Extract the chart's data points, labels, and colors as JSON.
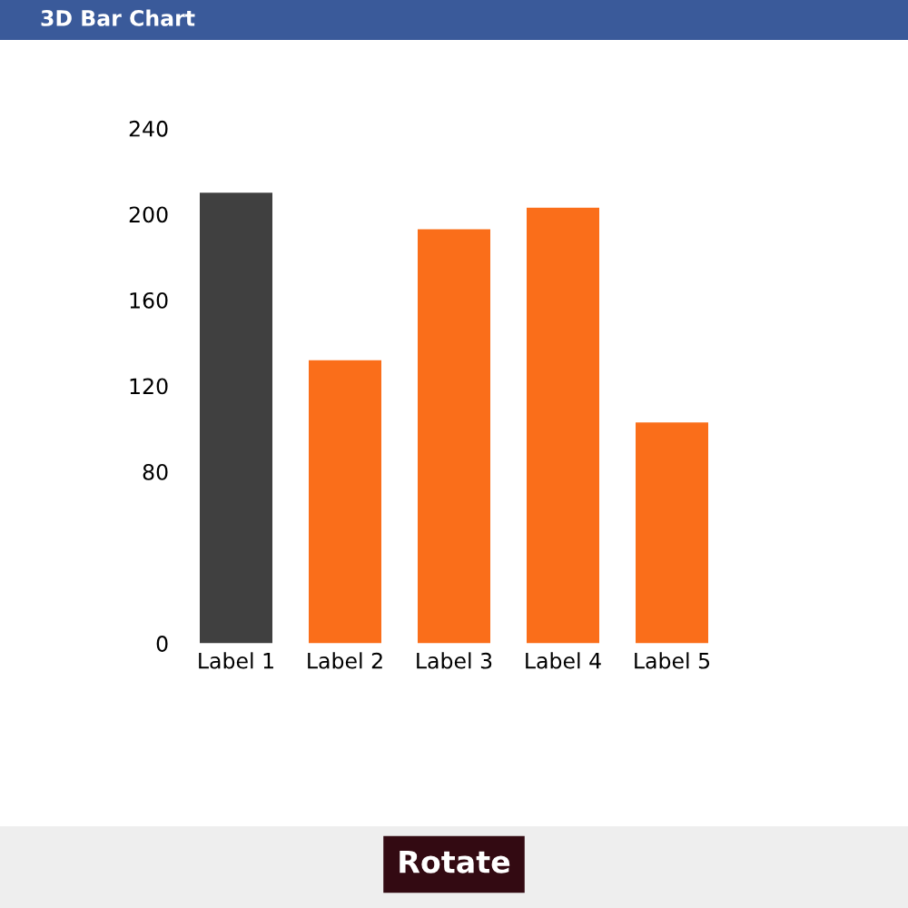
{
  "chart_data": {
    "type": "bar",
    "title": "3D Bar Chart",
    "categories": [
      "Label 1",
      "Label 2",
      "Label 3",
      "Label 4",
      "Label 5"
    ],
    "values": [
      210,
      132,
      193,
      203,
      103
    ],
    "colors": [
      "#404040",
      "#fa6e1a",
      "#fa6e1a",
      "#fa6e1a",
      "#fa6e1a"
    ],
    "ylim": [
      0,
      240
    ],
    "yticks": [
      0,
      80,
      120,
      160,
      200,
      240
    ],
    "grid": false,
    "legend": false,
    "annotations": [
      "Rotate"
    ]
  }
}
